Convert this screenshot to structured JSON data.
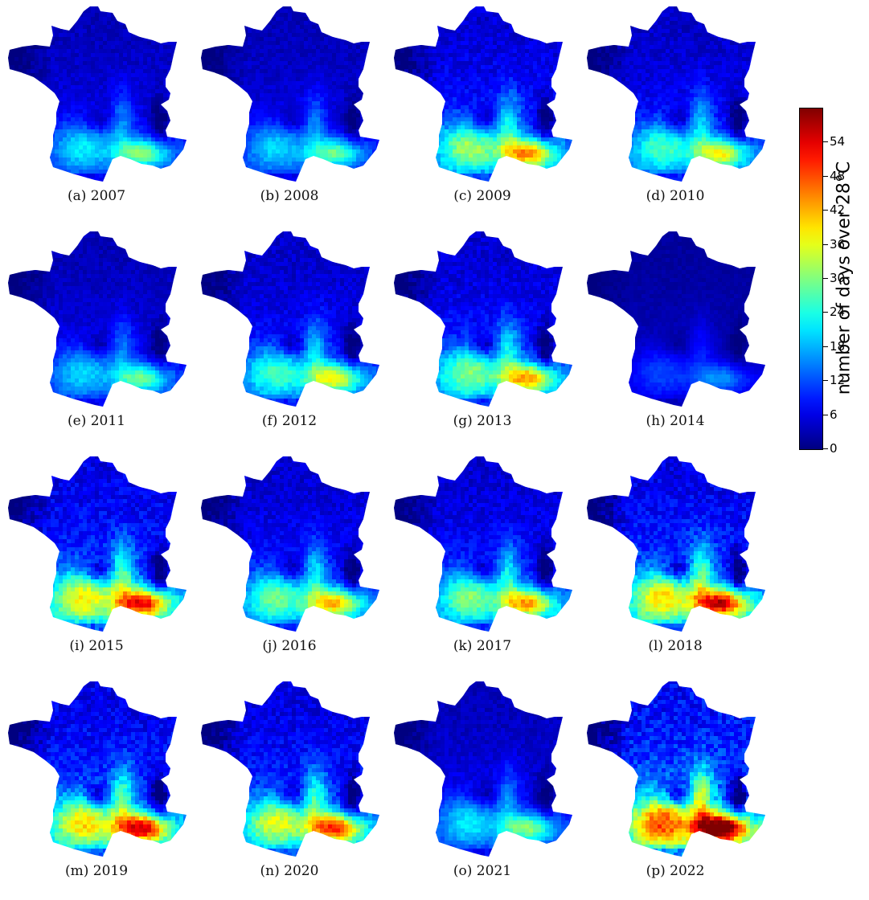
{
  "chart_data": {
    "type": "heatmap",
    "variable": "number of days over 28°C",
    "colormap": "jet",
    "color_range": [
      0,
      60
    ],
    "panels": [
      {
        "caption": "(a) 2007",
        "year": 2007,
        "intensity": 0.85
      },
      {
        "caption": "(b) 2008",
        "year": 2008,
        "intensity": 0.8
      },
      {
        "caption": "(c) 2009",
        "year": 2009,
        "intensity": 1.25
      },
      {
        "caption": "(d) 2010",
        "year": 2010,
        "intensity": 1.05
      },
      {
        "caption": "(e) 2011",
        "year": 2011,
        "intensity": 0.8
      },
      {
        "caption": "(f) 2012",
        "year": 2012,
        "intensity": 1.05
      },
      {
        "caption": "(g) 2013",
        "year": 2013,
        "intensity": 1.2
      },
      {
        "caption": "(h) 2014",
        "year": 2014,
        "intensity": 0.45
      },
      {
        "caption": "(i) 2015",
        "year": 2015,
        "intensity": 1.5
      },
      {
        "caption": "(j) 2016",
        "year": 2016,
        "intensity": 1.15
      },
      {
        "caption": "(k) 2017",
        "year": 2017,
        "intensity": 1.2
      },
      {
        "caption": "(l) 2018",
        "year": 2018,
        "intensity": 1.55
      },
      {
        "caption": "(m) 2019",
        "year": 2019,
        "intensity": 1.55
      },
      {
        "caption": "(n) 2020",
        "year": 2020,
        "intensity": 1.4
      },
      {
        "caption": "(o) 2021",
        "year": 2021,
        "intensity": 0.85
      },
      {
        "caption": "(p) 2022",
        "year": 2022,
        "intensity": 1.9
      }
    ],
    "colorbar": {
      "label": "number of days over 28°C",
      "ticks": [
        "0",
        "6",
        "12",
        "18",
        "24",
        "30",
        "36",
        "42",
        "48",
        "54"
      ],
      "tick_values": [
        0,
        6,
        12,
        18,
        24,
        30,
        36,
        42,
        48,
        54
      ],
      "min": 0,
      "max": 60
    }
  }
}
